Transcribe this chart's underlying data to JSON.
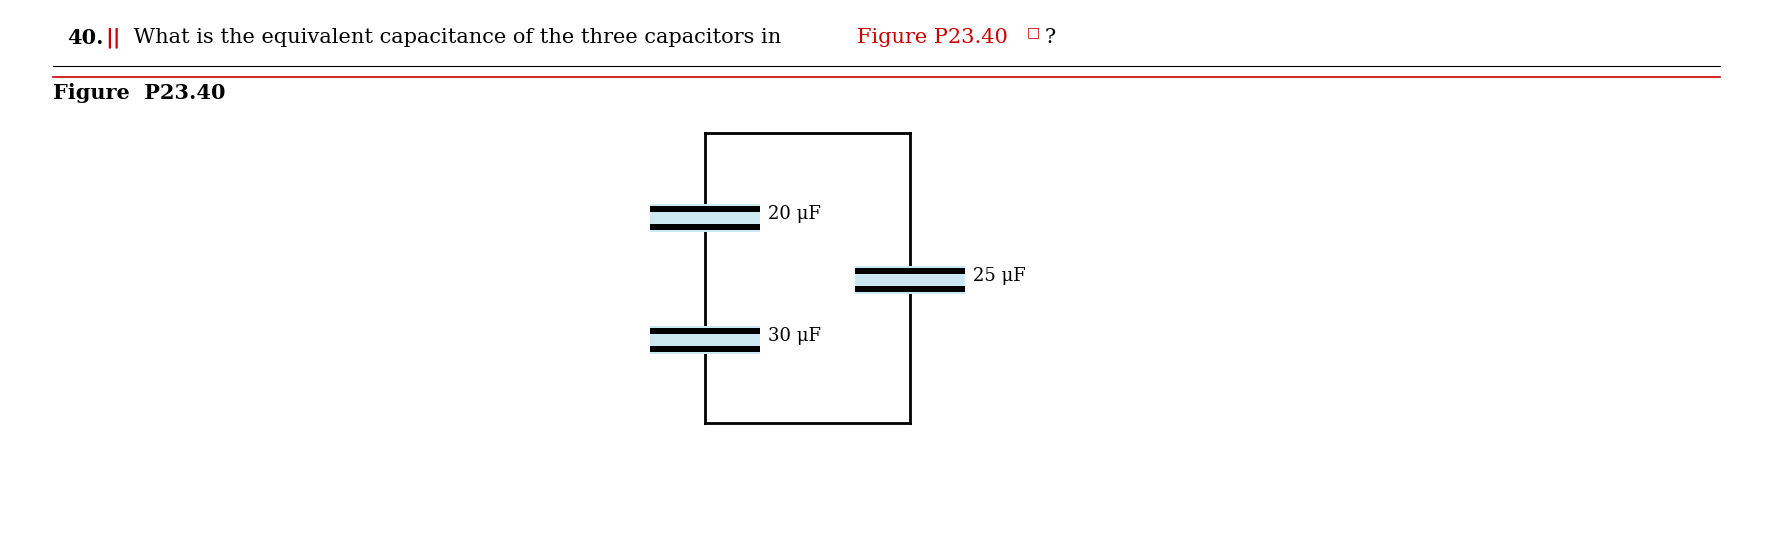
{
  "title_bold_num": "40.",
  "title_red_bars": "||",
  "title_black1": " What is the equivalent capacitance of the three capacitors in ",
  "title_red_fig": "Figure P23.40",
  "title_red_sq": "□",
  "title_black2": "?",
  "fig_label": "Figure  P23.40",
  "cap1_label": "20 μF",
  "cap2_label": "30 μF",
  "cap3_label": "25 μF",
  "line_color": "#000000",
  "cap_fill": "#cce8f0",
  "bg_color": "#ffffff",
  "red_color": "#cc0000",
  "separator_color": "#cc0000",
  "title_fontsize": 15,
  "fig_label_fontsize": 15
}
